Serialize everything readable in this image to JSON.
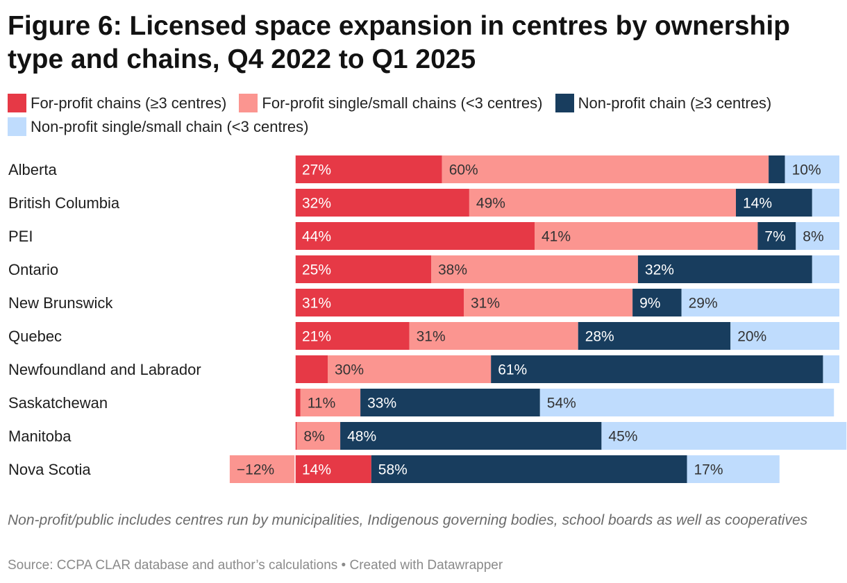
{
  "chart_data": {
    "type": "bar",
    "orientation": "horizontal",
    "stacked": true,
    "title": "Figure 6: Licensed space expansion in centres by ownership type and chains, Q4 2022 to Q1 2025",
    "categories": [
      "Alberta",
      "British Columbia",
      "PEI",
      "Ontario",
      "New Brunswick",
      "Quebec",
      "Newfoundland and Labrador",
      "Saskatchewan",
      "Manitoba",
      "Nova Scotia"
    ],
    "series": [
      {
        "name": "For-profit chains (≥3 centres)",
        "color": "#e63946",
        "text_color": "#ffffff",
        "values": [
          27,
          32,
          44,
          25,
          31,
          21,
          6,
          1,
          0.3,
          14
        ],
        "labels": [
          "27%",
          "32%",
          "44%",
          "25%",
          "31%",
          "21%",
          "",
          "",
          "",
          "14%"
        ]
      },
      {
        "name": "For-profit single/small chains (<3 centres)",
        "color": "#fb9590",
        "text_color": "#333333",
        "values": [
          60,
          49,
          41,
          38,
          31,
          31,
          30,
          11,
          8,
          -12
        ],
        "labels": [
          "60%",
          "49%",
          "41%",
          "38%",
          "31%",
          "31%",
          "30%",
          "11%",
          "8%",
          "−12%"
        ]
      },
      {
        "name": "Non-profit chain (≥3 centres)",
        "color": "#183d5e",
        "text_color": "#ffffff",
        "values": [
          3,
          14,
          7,
          32,
          9,
          28,
          61,
          33,
          48,
          58
        ],
        "labels": [
          "",
          "14%",
          "7%",
          "32%",
          "9%",
          "28%",
          "61%",
          "33%",
          "48%",
          "58%"
        ]
      },
      {
        "name": "Non-profit single/small chain (<3 centres)",
        "color": "#bfdcfd",
        "text_color": "#333333",
        "values": [
          10,
          5,
          8,
          5,
          29,
          20,
          3,
          54,
          45,
          17
        ],
        "labels": [
          "10%",
          "",
          "8%",
          "",
          "29%",
          "20%",
          "",
          "54%",
          "45%",
          "17%"
        ]
      }
    ],
    "legend_position": "top",
    "grid": false
  },
  "note": "Non-profit/public includes centres run by municipalities, Indigenous governing bodies, school boards as well as cooperatives",
  "source": "Source: CCPA CLAR database and author’s calculations • Created with Datawrapper"
}
